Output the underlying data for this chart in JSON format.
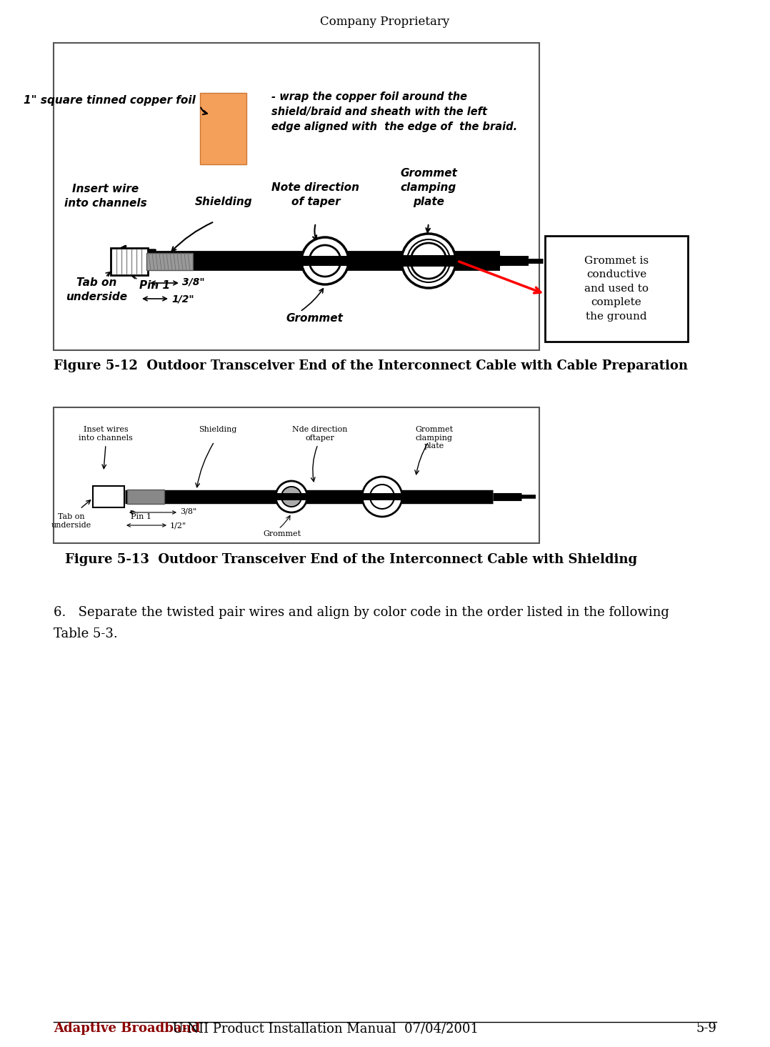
{
  "page_width": 10.78,
  "page_height": 14.65,
  "dpi": 100,
  "bg_color": "#ffffff",
  "header_text": "Company Proprietary",
  "header_fontsize": 12,
  "header_color": "#000000",
  "footer_text1": "Adaptive Broadband",
  "footer_text2": "  U-NII Product Installation Manual  07/04/2001",
  "footer_text3": "5-9",
  "footer_color1": "#8B0000",
  "footer_color2": "#000000",
  "footer_fontsize": 13,
  "fig1_caption": "Figure 5-12  Outdoor Transceiver End of the Interconnect Cable with Cable Preparation",
  "fig2_caption": "Figure 5-13  Outdoor Transceiver End of the Interconnect Cable with Shielding",
  "body_text_line1": "6.   Separate the twisted pair wires and align by color code in the order listed in the following",
  "body_text_line2": "Table 5-3.",
  "body_fontsize": 13,
  "copper_foil_color": "#F4A05A",
  "grommet_note_text": "Grommet is\nconductive\nand used to\ncomplete\nthe ground",
  "fig1_labels": {
    "copper_foil_label": "1\" square tinned copper foil",
    "wrap_text": "- wrap the copper foil around the\nshield/braid and sheath with the left\nedge aligned with  the edge of  the braid.",
    "insert_wire_text": "Insert wire\ninto channels",
    "shielding_text": "Shielding",
    "note_direction_text": "Note direction\nof taper",
    "grommet_clamp_text": "Grommet\nclamping\nplate",
    "tab_on_text": "Tab on\nunderside",
    "pin1_text": "Pin 1",
    "three_eighth_text": "3/8\"",
    "half_inch_text": "1/2\"",
    "grommet_text": "Grommet"
  }
}
